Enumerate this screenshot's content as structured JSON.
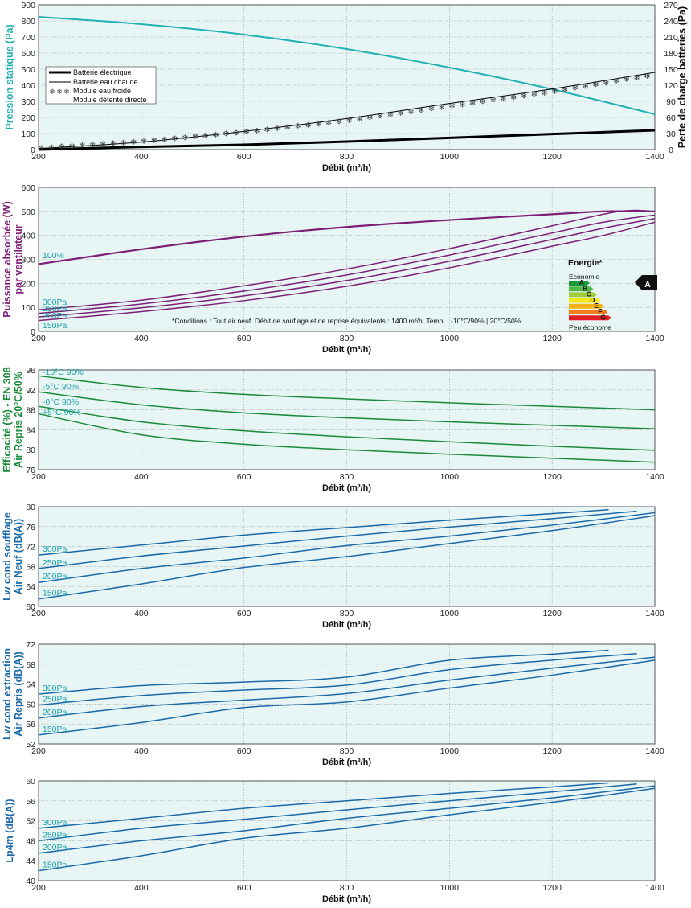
{
  "chart_data": [
    {
      "id": "pression",
      "type": "line",
      "xlabel": "Débit (m³/h)",
      "ylabel": "Pression statique (Pa)",
      "y2label": "Perte de charge batteries (Pa)",
      "xlim": [
        200,
        1400
      ],
      "ylim": [
        0,
        900
      ],
      "y2lim": [
        0,
        270
      ],
      "xticks": [
        200,
        400,
        600,
        800,
        1000,
        1200,
        1400
      ],
      "yticks": [
        0,
        100,
        200,
        300,
        400,
        500,
        600,
        700,
        800,
        900
      ],
      "y2ticks": [
        0,
        30,
        60,
        90,
        120,
        150,
        180,
        210,
        240,
        270
      ],
      "legend": {
        "position": "top-left",
        "entries": [
          "Batterie électrique",
          "Batterie eau chaude",
          "Module eau froide",
          "Module détente directe"
        ]
      },
      "series": [
        {
          "name": "",
          "axis": "left",
          "style": "teal",
          "x": [
            200,
            400,
            600,
            800,
            1000,
            1200,
            1400
          ],
          "y": [
            825,
            780,
            715,
            625,
            510,
            375,
            220
          ]
        },
        {
          "name": "Batterie électrique",
          "axis": "right",
          "style": "thick",
          "x": [
            200,
            400,
            600,
            800,
            1000,
            1200,
            1400
          ],
          "y": [
            0,
            5,
            9,
            15,
            22,
            29,
            36
          ]
        },
        {
          "name": "Batterie eau chaude",
          "axis": "right",
          "style": "thin",
          "x": [
            200,
            400,
            600,
            800,
            1000,
            1200,
            1400
          ],
          "y": [
            2,
            14,
            34,
            58,
            86,
            113,
            144
          ]
        },
        {
          "name": "Module eau froide",
          "axis": "right",
          "style": "stars",
          "x": [
            200,
            400,
            600,
            800,
            1000,
            1200,
            1400
          ],
          "y": [
            3,
            15,
            33,
            54,
            81,
            108,
            140
          ]
        }
      ]
    },
    {
      "id": "puissance",
      "type": "line",
      "xlabel": "Débit (m³/h)",
      "ylabel": "Puissance absorbée (W)",
      "ylabel2": "par ventilateur",
      "xlim": [
        200,
        1400
      ],
      "ylim": [
        0,
        600
      ],
      "xticks": [
        200,
        400,
        600,
        800,
        1000,
        1200,
        1400
      ],
      "yticks": [
        0,
        100,
        200,
        300,
        400,
        500,
        600
      ],
      "note": "*Conditions : Tout air neuf. Débit de souflage et de reprise équivalents : 1400 m³/h. Temp. : -10°C/90% | 20°C/50%",
      "energy_label": {
        "title": "Energie*",
        "top_text": "Economie",
        "bottom_text": "Peu économe",
        "classes": [
          "A",
          "B",
          "C",
          "D",
          "E",
          "F",
          "G"
        ],
        "colors": [
          "#1a9a3a",
          "#4db848",
          "#9fcd3b",
          "#f4e61c",
          "#f8b417",
          "#ef7c1e",
          "#e31e24"
        ],
        "rating": "A"
      },
      "series": [
        {
          "name": "100%",
          "x": [
            200,
            400,
            600,
            800,
            1000,
            1200,
            1300,
            1400
          ],
          "y": [
            280,
            342,
            395,
            435,
            464,
            488,
            500,
            500
          ]
        },
        {
          "name": "300Pa",
          "x": [
            200,
            400,
            600,
            800,
            1000,
            1200,
            1330,
            1400
          ],
          "y": [
            90,
            130,
            190,
            260,
            345,
            440,
            500,
            500
          ]
        },
        {
          "name": "250Pa",
          "x": [
            200,
            400,
            600,
            800,
            1000,
            1200,
            1300,
            1400
          ],
          "y": [
            75,
            114,
            168,
            235,
            318,
            410,
            455,
            485
          ]
        },
        {
          "name": "200Pa",
          "x": [
            200,
            400,
            600,
            800,
            1000,
            1200,
            1300,
            1400
          ],
          "y": [
            60,
            98,
            148,
            212,
            292,
            383,
            430,
            470
          ]
        },
        {
          "name": "150Pa",
          "x": [
            200,
            400,
            600,
            800,
            1000,
            1200,
            1300,
            1400
          ],
          "y": [
            45,
            82,
            128,
            188,
            265,
            355,
            400,
            455
          ]
        }
      ]
    },
    {
      "id": "efficacite",
      "type": "line",
      "xlabel": "Débit (m³/h)",
      "ylabel": "Efficacité (%) - EN 308",
      "ylabel2": "Air Repris 20°C/50%",
      "xlim": [
        200,
        1400
      ],
      "ylim": [
        76,
        96
      ],
      "xticks": [
        200,
        400,
        600,
        800,
        1000,
        1200,
        1400
      ],
      "yticks": [
        76,
        80,
        84,
        88,
        92,
        96
      ],
      "series": [
        {
          "name": "-10°C 90%",
          "x": [
            200,
            400,
            600,
            800,
            1000,
            1200,
            1400
          ],
          "y": [
            94.8,
            92.5,
            91.1,
            90.2,
            89.4,
            88.7,
            88.0
          ]
        },
        {
          "name": "-5°C 90%",
          "x": [
            200,
            400,
            600,
            800,
            1000,
            1200,
            1400
          ],
          "y": [
            91.6,
            89.0,
            87.4,
            86.4,
            85.6,
            84.9,
            84.2
          ]
        },
        {
          "name": "-0°C 90%",
          "x": [
            200,
            400,
            600,
            800,
            1000,
            1200,
            1400
          ],
          "y": [
            88.7,
            85.6,
            83.8,
            82.6,
            81.6,
            80.7,
            79.9
          ]
        },
        {
          "name": "+5°C 90%",
          "x": [
            200,
            400,
            600,
            800,
            1000,
            1200,
            1400
          ],
          "y": [
            87.2,
            83.0,
            81.1,
            80.0,
            79.1,
            78.3,
            77.5
          ]
        }
      ]
    },
    {
      "id": "lw-soufflage",
      "type": "line",
      "xlabel": "Débit (m³/h)",
      "ylabel": "Lw cond soufflage",
      "ylabel2": "Air Neuf (dB(A))",
      "xlim": [
        200,
        1400
      ],
      "ylim": [
        60,
        80
      ],
      "xticks": [
        200,
        400,
        600,
        800,
        1000,
        1200,
        1400
      ],
      "yticks": [
        60,
        64,
        68,
        72,
        76,
        80
      ],
      "series": [
        {
          "name": "300Pa",
          "x": [
            200,
            400,
            600,
            800,
            1000,
            1200,
            1310
          ],
          "y": [
            70.3,
            72.3,
            74.3,
            75.8,
            77.3,
            78.6,
            79.4
          ]
        },
        {
          "name": "250Pa",
          "x": [
            200,
            400,
            600,
            800,
            1000,
            1200,
            1365
          ],
          "y": [
            67.6,
            70.1,
            72.1,
            74.1,
            75.9,
            77.6,
            79.1
          ]
        },
        {
          "name": "200Pa",
          "x": [
            200,
            400,
            600,
            800,
            1000,
            1200,
            1400
          ],
          "y": [
            64.8,
            67.6,
            69.7,
            72.2,
            74.1,
            76.3,
            78.8
          ]
        },
        {
          "name": "150Pa",
          "x": [
            200,
            400,
            600,
            800,
            1000,
            1200,
            1400
          ],
          "y": [
            61.5,
            64.5,
            67.8,
            70.0,
            72.6,
            75.2,
            78.2
          ]
        }
      ]
    },
    {
      "id": "lw-extraction",
      "type": "line",
      "xlabel": "Débit (m³/h)",
      "ylabel": "Lw cond extraction",
      "ylabel2": "Air Repris (dB(A))",
      "xlim": [
        200,
        1400
      ],
      "ylim": [
        52,
        72
      ],
      "xticks": [
        200,
        400,
        600,
        800,
        1000,
        1200,
        1400
      ],
      "yticks": [
        52,
        56,
        60,
        64,
        68,
        72
      ],
      "series": [
        {
          "name": "300Pa",
          "x": [
            200,
            400,
            600,
            800,
            1000,
            1200,
            1310
          ],
          "y": [
            62.0,
            63.7,
            64.4,
            65.4,
            68.8,
            70.0,
            70.8
          ]
        },
        {
          "name": "250Pa",
          "x": [
            200,
            400,
            600,
            800,
            1000,
            1200,
            1365
          ],
          "y": [
            59.8,
            61.7,
            62.8,
            63.8,
            66.9,
            68.8,
            70.1
          ]
        },
        {
          "name": "200Pa",
          "x": [
            200,
            400,
            600,
            800,
            1000,
            1200,
            1400
          ],
          "y": [
            57.2,
            59.5,
            60.8,
            62.1,
            64.8,
            67.2,
            69.4
          ]
        },
        {
          "name": "150Pa",
          "x": [
            200,
            400,
            600,
            800,
            1000,
            1200,
            1400
          ],
          "y": [
            53.8,
            56.3,
            59.3,
            60.4,
            63.2,
            65.8,
            68.8
          ]
        }
      ]
    },
    {
      "id": "lp4m",
      "type": "line",
      "xlabel": "Débit (m³/h)",
      "ylabel": "Lp4m (dB(A))",
      "xlim": [
        200,
        1400
      ],
      "ylim": [
        40,
        60
      ],
      "xticks": [
        200,
        400,
        600,
        800,
        1000,
        1200,
        1400
      ],
      "yticks": [
        40,
        44,
        48,
        52,
        56,
        60
      ],
      "series": [
        {
          "name": "300Pa",
          "x": [
            200,
            400,
            600,
            800,
            1000,
            1200,
            1310
          ],
          "y": [
            50.5,
            52.5,
            54.5,
            56.0,
            57.5,
            58.8,
            59.6
          ]
        },
        {
          "name": "250Pa",
          "x": [
            200,
            400,
            600,
            800,
            1000,
            1200,
            1365
          ],
          "y": [
            48.0,
            50.5,
            52.3,
            54.2,
            56.0,
            57.8,
            59.4
          ]
        },
        {
          "name": "200Pa",
          "x": [
            200,
            400,
            600,
            800,
            1000,
            1200,
            1400
          ],
          "y": [
            45.5,
            48.0,
            50.0,
            52.5,
            54.5,
            56.6,
            59.0
          ]
        },
        {
          "name": "150Pa",
          "x": [
            200,
            400,
            600,
            800,
            1000,
            1200,
            1400
          ],
          "y": [
            42.0,
            45.0,
            48.5,
            50.5,
            53.2,
            55.7,
            58.5
          ]
        }
      ]
    }
  ]
}
